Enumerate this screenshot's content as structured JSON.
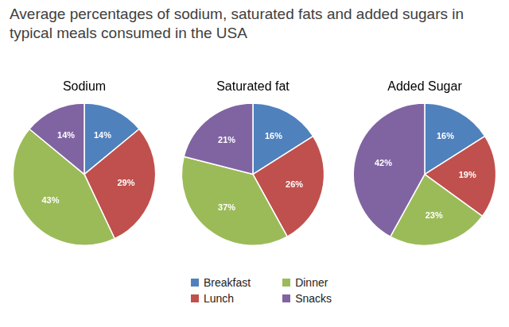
{
  "title": "Average percentages of sodium, saturated fats and added sugars in typical meals consumed in the USA",
  "legend": "bottom",
  "chart_data": [
    {
      "type": "pie",
      "title": "Sodium",
      "categories": [
        "Breakfast",
        "Lunch",
        "Dinner",
        "Snacks"
      ],
      "values": [
        14,
        29,
        43,
        14
      ],
      "value_labels": [
        "14%",
        "29%",
        "43%",
        "14%"
      ],
      "colors": [
        "#4f81bd",
        "#c0504d",
        "#9bbb59",
        "#8064a2"
      ],
      "data_labels": true
    },
    {
      "type": "pie",
      "title": "Saturated fat",
      "categories": [
        "Breakfast",
        "Lunch",
        "Dinner",
        "Snacks"
      ],
      "values": [
        16,
        26,
        37,
        21
      ],
      "value_labels": [
        "16%",
        "26%",
        "37%",
        "21%"
      ],
      "colors": [
        "#4f81bd",
        "#c0504d",
        "#9bbb59",
        "#8064a2"
      ],
      "data_labels": true
    },
    {
      "type": "pie",
      "title": "Added Sugar",
      "categories": [
        "Breakfast",
        "Lunch",
        "Dinner",
        "Snacks"
      ],
      "values": [
        16,
        19,
        23,
        42
      ],
      "value_labels": [
        "16%",
        "19%",
        "23%",
        "42%"
      ],
      "colors": [
        "#4f81bd",
        "#c0504d",
        "#9bbb59",
        "#8064a2"
      ],
      "data_labels": true
    }
  ]
}
